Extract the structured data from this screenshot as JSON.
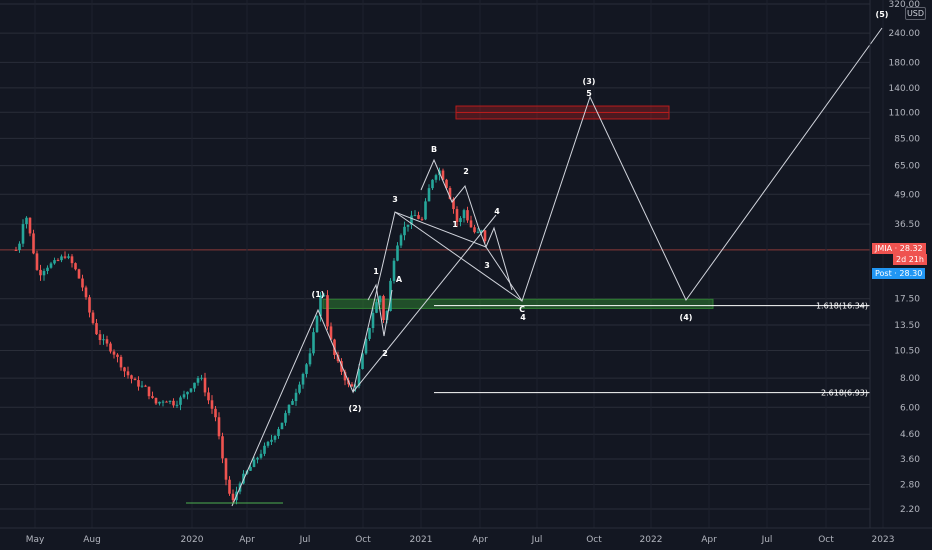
{
  "chart_data": {
    "type": "candlestick",
    "currency_label": "USD",
    "scale": "log",
    "x_ticks": [
      "May",
      "Aug",
      "2020",
      "Apr",
      "Jul",
      "Oct",
      "2021",
      "Apr",
      "Jul",
      "Oct",
      "2022",
      "Apr",
      "Jul",
      "Oct",
      "2023"
    ],
    "y_ticks": [
      "320.00",
      "240.00",
      "180.00",
      "140.00",
      "110.00",
      "85.00",
      "65.00",
      "49.00",
      "36.50",
      "28.32",
      "17.50",
      "13.50",
      "10.50",
      "8.00",
      "6.00",
      "4.60",
      "3.60",
      "2.80",
      "2.20"
    ],
    "y_ticks_values": [
      320,
      240,
      180,
      140,
      110,
      85,
      65,
      49,
      36.5,
      17.5,
      13.5,
      10.5,
      8,
      6,
      4.6,
      3.6,
      2.8,
      2.2
    ],
    "last_price": {
      "label": "JMIA",
      "value": "28.32",
      "countdown": "2d 21h",
      "color": "#ef5350"
    },
    "post_price": {
      "label": "Post",
      "value": "28.30",
      "color": "#2196f3"
    },
    "up_color": "#26a69a",
    "down_color": "#ef5350",
    "wave_labels": [
      {
        "text": "(1)"
      },
      {
        "text": "(2)"
      },
      {
        "text": "1"
      },
      {
        "text": "2"
      },
      {
        "text": "3"
      },
      {
        "text": "A"
      },
      {
        "text": "B"
      },
      {
        "text": "1"
      },
      {
        "text": "2"
      },
      {
        "text": "3"
      },
      {
        "text": "4"
      },
      {
        "text": "C"
      },
      {
        "text": "4"
      },
      {
        "text": "(3)"
      },
      {
        "text": "5"
      },
      {
        "text": "(4)"
      },
      {
        "text": "(5)"
      }
    ],
    "fib_levels": [
      {
        "label": "1.618(16.34)",
        "value": 16.34
      },
      {
        "label": "2.618(6.93)",
        "value": 6.93
      }
    ],
    "zones": [
      {
        "type": "resistance",
        "low": 103,
        "high": 117,
        "color": "#b71c1c"
      },
      {
        "type": "support",
        "low": 15.9,
        "high": 17.4,
        "color": "#1b5e20"
      }
    ]
  }
}
